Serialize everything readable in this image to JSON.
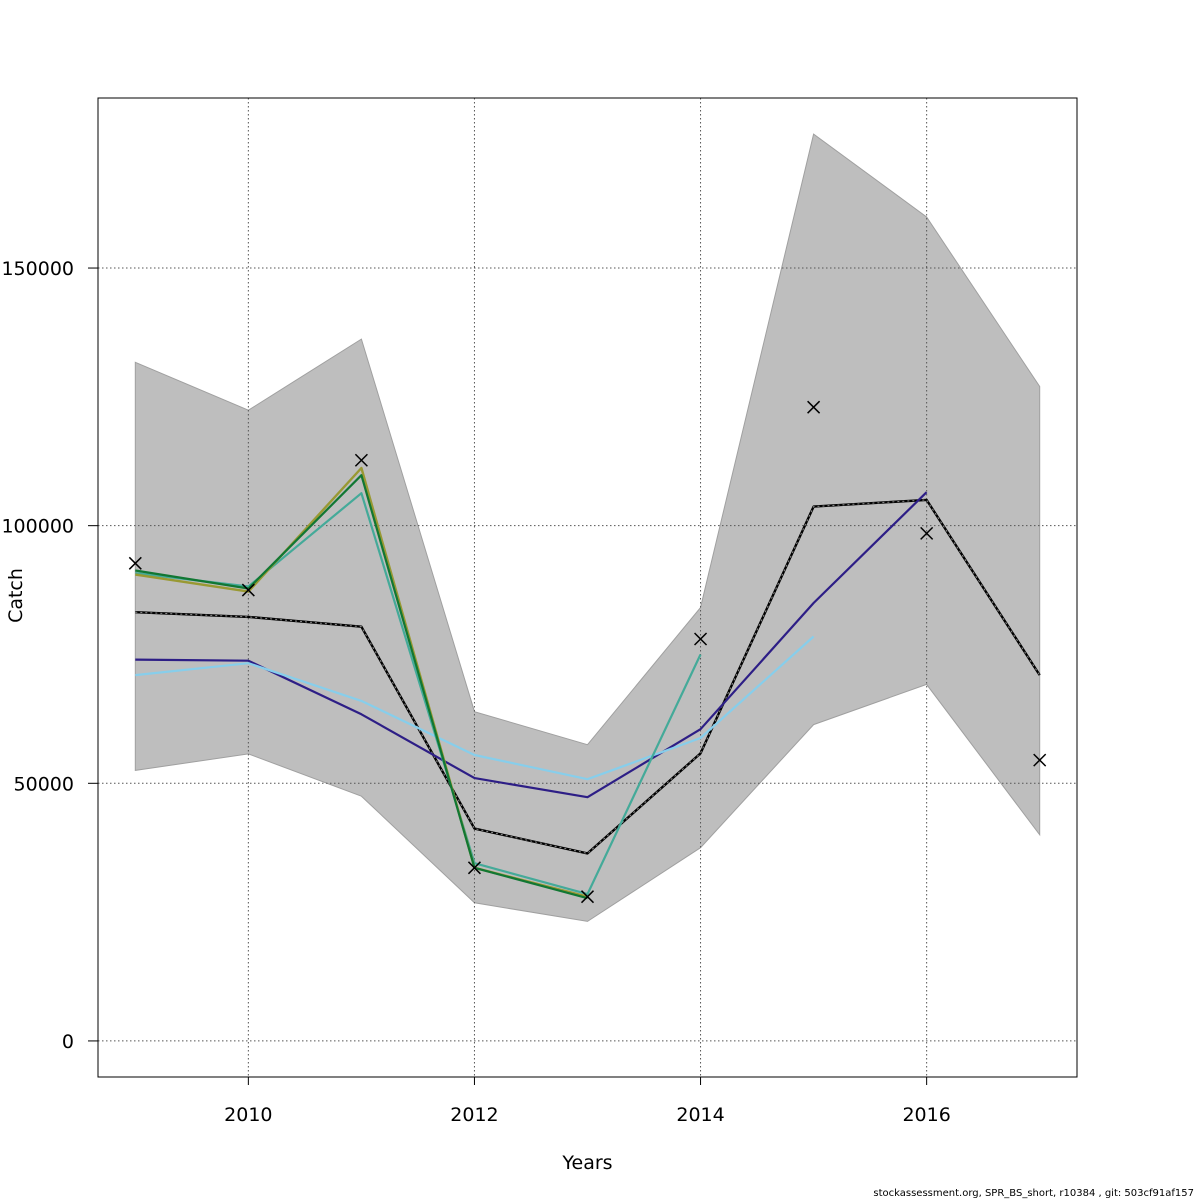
{
  "chart_data": {
    "type": "line",
    "xlabel": "Years",
    "ylabel": "Catch",
    "xlim": [
      2008.67,
      2017.33
    ],
    "ylim": [
      -7000,
      183000
    ],
    "x_ticks": [
      2010,
      2012,
      2014,
      2016
    ],
    "y_ticks": [
      0,
      50000,
      100000,
      150000
    ],
    "x_tick_labels": [
      "2010",
      "2012",
      "2014",
      "2016"
    ],
    "y_tick_labels": [
      "0",
      "50000",
      "100000",
      "150000"
    ],
    "grid": true,
    "x": [
      2009,
      2010,
      2011,
      2012,
      2013,
      2014,
      2015,
      2016,
      2017
    ],
    "band": {
      "color": "#bebebe",
      "lower": [
        52500,
        55700,
        47500,
        26800,
        23200,
        37500,
        61400,
        69200,
        40000
      ],
      "upper": [
        131700,
        122400,
        136200,
        63900,
        57500,
        84100,
        176000,
        159900,
        127000
      ]
    },
    "series": [
      {
        "color": "#000000",
        "dashed": true,
        "width": 2.4,
        "x": [
          2009,
          2010,
          2011,
          2012,
          2013,
          2014,
          2015,
          2016,
          2017
        ],
        "values": [
          83200,
          82300,
          80400,
          41200,
          36400,
          55800,
          103700,
          105000,
          71000
        ]
      },
      {
        "color": "#2d1e86",
        "dashed": false,
        "width": 2.2,
        "x": [
          2009,
          2010,
          2011,
          2012,
          2013,
          2014,
          2015,
          2016
        ],
        "values": [
          74000,
          73800,
          63400,
          51000,
          47300,
          60500,
          85000,
          106500
        ]
      },
      {
        "color": "#87ceeb",
        "dashed": false,
        "width": 2.2,
        "x": [
          2009,
          2010,
          2011,
          2012,
          2013,
          2014,
          2015
        ],
        "values": [
          71000,
          73300,
          66000,
          55500,
          50800,
          58800,
          78500
        ]
      },
      {
        "color": "#44aa99",
        "dashed": false,
        "width": 2.2,
        "x": [
          2009,
          2010,
          2011,
          2012,
          2013,
          2014
        ],
        "values": [
          90800,
          88200,
          106300,
          34500,
          28500,
          75000
        ]
      },
      {
        "color": "#999933",
        "dashed": false,
        "width": 2.4,
        "x": [
          2009,
          2010,
          2011,
          2012,
          2013
        ],
        "values": [
          90500,
          87200,
          111200,
          33600,
          28000
        ]
      },
      {
        "color": "#117733",
        "dashed": false,
        "width": 2.2,
        "x": [
          2009,
          2010,
          2011,
          2012,
          2013
        ],
        "values": [
          91300,
          87800,
          109800,
          33600,
          27700
        ]
      }
    ],
    "observed": {
      "marker": "x",
      "x": [
        2009,
        2010,
        2011,
        2012,
        2013,
        2014,
        2015,
        2016,
        2017
      ],
      "values": [
        92700,
        87500,
        112700,
        33600,
        28000,
        78000,
        123000,
        98500,
        54500
      ]
    }
  },
  "footer": "stockassessment.org, SPR_BS_short, r10384 , git: 503cf91af157"
}
